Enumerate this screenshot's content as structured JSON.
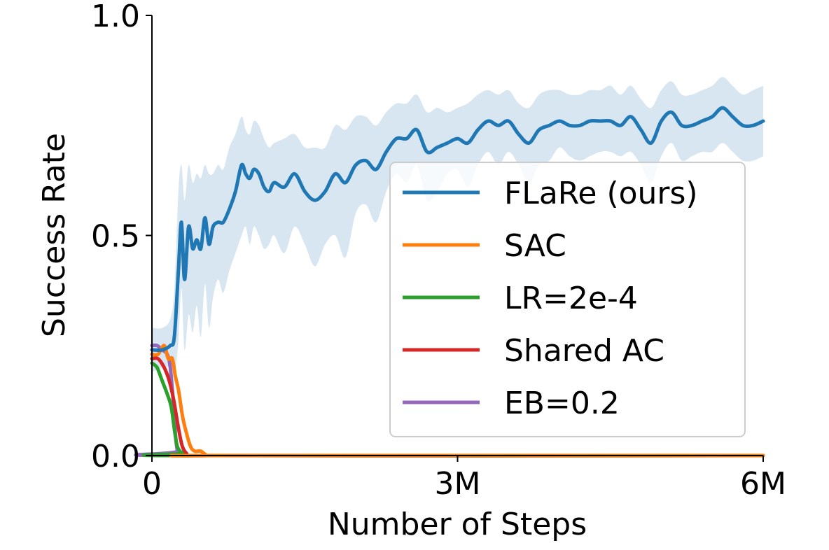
{
  "chart_data": {
    "type": "line",
    "title": "",
    "xlabel": "Number of Steps",
    "ylabel": "Success Rate",
    "xlim": [
      0,
      6000000
    ],
    "ylim": [
      0,
      1
    ],
    "xticks": [
      {
        "value": 0,
        "label": "0"
      },
      {
        "value": 3000000,
        "label": "3M"
      },
      {
        "value": 6000000,
        "label": "6M"
      }
    ],
    "yticks": [
      {
        "value": 0,
        "label": "0.0"
      },
      {
        "value": 0.5,
        "label": "0.5"
      },
      {
        "value": 1,
        "label": "1.0"
      }
    ],
    "grid": false,
    "legend_position": "right",
    "series": [
      {
        "name": "FLaRe (ours)",
        "color": "#1f77b4",
        "band_color": "#1f77b4",
        "x": [
          0,
          100000,
          180000,
          220000,
          260000,
          290000,
          320000,
          360000,
          400000,
          440000,
          480000,
          520000,
          560000,
          600000,
          650000,
          700000,
          760000,
          820000,
          880000,
          920000,
          960000,
          1000000,
          1050000,
          1100000,
          1150000,
          1200000,
          1300000,
          1400000,
          1500000,
          1600000,
          1700000,
          1800000,
          1900000,
          2000000,
          2100000,
          2200000,
          2300000,
          2400000,
          2500000,
          2600000,
          2700000,
          2800000,
          2900000,
          3000000,
          3100000,
          3200000,
          3300000,
          3400000,
          3500000,
          3600000,
          3700000,
          3800000,
          3900000,
          4000000,
          4100000,
          4200000,
          4300000,
          4400000,
          4500000,
          4600000,
          4700000,
          4800000,
          4900000,
          5000000,
          5100000,
          5200000,
          5300000,
          5400000,
          5500000,
          5600000,
          5700000,
          5800000,
          5900000,
          6000000
        ],
        "y": [
          0.24,
          0.24,
          0.25,
          0.27,
          0.42,
          0.53,
          0.4,
          0.52,
          0.47,
          0.49,
          0.47,
          0.54,
          0.48,
          0.52,
          0.53,
          0.53,
          0.56,
          0.6,
          0.66,
          0.64,
          0.63,
          0.65,
          0.64,
          0.61,
          0.6,
          0.62,
          0.61,
          0.64,
          0.6,
          0.58,
          0.6,
          0.64,
          0.62,
          0.66,
          0.67,
          0.65,
          0.69,
          0.72,
          0.72,
          0.74,
          0.69,
          0.7,
          0.71,
          0.72,
          0.71,
          0.74,
          0.76,
          0.75,
          0.76,
          0.73,
          0.71,
          0.74,
          0.75,
          0.76,
          0.75,
          0.75,
          0.76,
          0.76,
          0.76,
          0.75,
          0.77,
          0.74,
          0.71,
          0.76,
          0.78,
          0.75,
          0.75,
          0.76,
          0.77,
          0.79,
          0.77,
          0.75,
          0.75,
          0.76
        ],
        "y_low": [
          0.19,
          0.2,
          0.2,
          0.18,
          0.26,
          0.38,
          0.24,
          0.32,
          0.28,
          0.34,
          0.27,
          0.39,
          0.29,
          0.36,
          0.4,
          0.37,
          0.42,
          0.46,
          0.5,
          0.52,
          0.48,
          0.52,
          0.5,
          0.47,
          0.48,
          0.5,
          0.46,
          0.52,
          0.48,
          0.43,
          0.48,
          0.5,
          0.45,
          0.55,
          0.57,
          0.53,
          0.6,
          0.64,
          0.62,
          0.66,
          0.58,
          0.6,
          0.64,
          0.65,
          0.61,
          0.66,
          0.69,
          0.66,
          0.69,
          0.66,
          0.62,
          0.66,
          0.67,
          0.7,
          0.68,
          0.67,
          0.68,
          0.69,
          0.69,
          0.68,
          0.69,
          0.66,
          0.62,
          0.68,
          0.71,
          0.67,
          0.68,
          0.69,
          0.69,
          0.71,
          0.69,
          0.67,
          0.67,
          0.68
        ],
        "y_high": [
          0.29,
          0.29,
          0.31,
          0.38,
          0.6,
          0.66,
          0.58,
          0.66,
          0.62,
          0.64,
          0.63,
          0.66,
          0.64,
          0.64,
          0.66,
          0.65,
          0.7,
          0.73,
          0.77,
          0.74,
          0.73,
          0.76,
          0.75,
          0.72,
          0.7,
          0.71,
          0.72,
          0.73,
          0.7,
          0.7,
          0.7,
          0.75,
          0.74,
          0.77,
          0.77,
          0.75,
          0.78,
          0.8,
          0.8,
          0.82,
          0.78,
          0.79,
          0.78,
          0.79,
          0.8,
          0.82,
          0.83,
          0.82,
          0.83,
          0.8,
          0.79,
          0.82,
          0.83,
          0.83,
          0.82,
          0.82,
          0.83,
          0.83,
          0.84,
          0.82,
          0.84,
          0.81,
          0.79,
          0.83,
          0.85,
          0.82,
          0.82,
          0.83,
          0.84,
          0.86,
          0.84,
          0.82,
          0.83,
          0.84
        ]
      },
      {
        "name": "SAC",
        "color": "#ff7f0e",
        "x": [
          0,
          60000,
          120000,
          160000,
          200000,
          230000,
          260000,
          300000,
          340000,
          380000,
          420000,
          480000,
          540000,
          600000,
          6000000
        ],
        "y": [
          0.23,
          0.23,
          0.25,
          0.22,
          0.22,
          0.18,
          0.15,
          0.09,
          0.05,
          0.02,
          0.01,
          0.01,
          0.0,
          0.0,
          0.0
        ]
      },
      {
        "name": "LR=2e-4",
        "color": "#2ca02c",
        "x": [
          0,
          50000,
          100000,
          150000,
          190000,
          220000,
          250000,
          300000,
          350000,
          6000000
        ],
        "y": [
          0.21,
          0.2,
          0.17,
          0.14,
          0.11,
          0.06,
          0.02,
          0.005,
          0.0,
          0.0
        ]
      },
      {
        "name": "Shared AC",
        "color": "#d62728",
        "x": [
          0,
          60000,
          120000,
          170000,
          210000,
          240000,
          270000,
          300000,
          340000,
          400000,
          6000000
        ],
        "y": [
          0.22,
          0.22,
          0.2,
          0.17,
          0.13,
          0.09,
          0.05,
          0.02,
          0.005,
          0.0,
          0.0
        ]
      },
      {
        "name": "EB=0.2",
        "color": "#9467bd",
        "x": [
          0,
          50000,
          100000,
          150000,
          180000,
          210000,
          230000,
          250000,
          270000,
          6000000
        ],
        "y": [
          0.25,
          0.25,
          0.24,
          0.23,
          0.2,
          0.12,
          0.05,
          0.01,
          0.0,
          0.0
        ]
      }
    ]
  }
}
